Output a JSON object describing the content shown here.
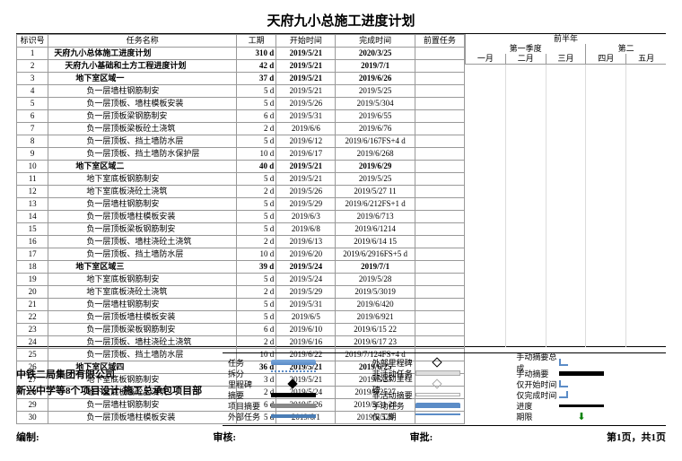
{
  "title": "天府九小总施工进度计划",
  "columns": {
    "id": "标识号",
    "name": "任务名称",
    "duration": "工期",
    "start": "开始时间",
    "end": "完成时间",
    "pred": "前置任务"
  },
  "gantt_header": {
    "half_year": "前半年",
    "q1": "第一季度",
    "q2": "第二",
    "months": [
      "一月",
      "二月",
      "三月",
      "四月",
      "五月"
    ]
  },
  "rows": [
    {
      "id": "1",
      "name": "天府九小总体施工进度计划",
      "dur": "310 d",
      "start": "2019/5/21",
      "end": "2020/3/25",
      "indent": 0,
      "bold": true
    },
    {
      "id": "2",
      "name": "天府九小基础和土方工程进度计划",
      "dur": "42 d",
      "start": "2019/5/21",
      "end": "2019/7/1",
      "indent": 1,
      "bold": true
    },
    {
      "id": "3",
      "name": "地下室区域一",
      "dur": "37 d",
      "start": "2019/5/21",
      "end": "2019/6/26",
      "indent": 2,
      "bold": true
    },
    {
      "id": "4",
      "name": "负一层墙柱钢筋制安",
      "dur": "5 d",
      "start": "2019/5/21",
      "end": "2019/5/25",
      "indent": 3
    },
    {
      "id": "5",
      "name": "负一层顶板、墙柱模板安装",
      "dur": "5 d",
      "start": "2019/5/26",
      "end": "2019/5/304",
      "indent": 3
    },
    {
      "id": "6",
      "name": "负一层顶板梁钢筋制安",
      "dur": "6 d",
      "start": "2019/5/31",
      "end": "2019/6/55",
      "indent": 3
    },
    {
      "id": "7",
      "name": "负一层顶板梁板砼土浇筑",
      "dur": "2 d",
      "start": "2019/6/6",
      "end": "2019/6/76",
      "indent": 3
    },
    {
      "id": "8",
      "name": "负一层顶板、挡土墙防水层",
      "dur": "5 d",
      "start": "2019/6/12",
      "end": "2019/6/167FS+4 d",
      "indent": 3
    },
    {
      "id": "9",
      "name": "负一层顶板、挡土墙防水保护层",
      "dur": "10 d",
      "start": "2019/6/17",
      "end": "2019/6/268",
      "indent": 3
    },
    {
      "id": "10",
      "name": "地下室区域二",
      "dur": "40 d",
      "start": "2019/5/21",
      "end": "2019/6/29",
      "indent": 2,
      "bold": true
    },
    {
      "id": "11",
      "name": "地下室底板钢筋制安",
      "dur": "5 d",
      "start": "2019/5/21",
      "end": "2019/5/25",
      "indent": 3
    },
    {
      "id": "12",
      "name": "地下室底板浇砼土浇筑",
      "dur": "2 d",
      "start": "2019/5/26",
      "end": "2019/5/27 11",
      "indent": 3
    },
    {
      "id": "13",
      "name": "负一层墙柱钢筋制安",
      "dur": "5 d",
      "start": "2019/5/29",
      "end": "2019/6/212FS+1 d",
      "indent": 3
    },
    {
      "id": "14",
      "name": "负一层顶板墙柱模板安装",
      "dur": "5 d",
      "start": "2019/6/3",
      "end": "2019/6/713",
      "indent": 3
    },
    {
      "id": "15",
      "name": "负一层顶板梁板钢筋制安",
      "dur": "5 d",
      "start": "2019/6/8",
      "end": "2019/6/1214",
      "indent": 3
    },
    {
      "id": "16",
      "name": "负一层顶板、墙柱浇砼土浇筑",
      "dur": "2 d",
      "start": "2019/6/13",
      "end": "2019/6/14 15",
      "indent": 3
    },
    {
      "id": "17",
      "name": "负一层顶板、挡土墙防水层",
      "dur": "10 d",
      "start": "2019/6/20",
      "end": "2019/6/2916FS+5 d",
      "indent": 3
    },
    {
      "id": "18",
      "name": "地下室区域三",
      "dur": "39 d",
      "start": "2019/5/24",
      "end": "2019/7/1",
      "indent": 2,
      "bold": true
    },
    {
      "id": "19",
      "name": "地下室底板钢筋制安",
      "dur": "5 d",
      "start": "2019/5/24",
      "end": "2019/5/28",
      "indent": 3
    },
    {
      "id": "20",
      "name": "地下室底板浇砼土浇筑",
      "dur": "2 d",
      "start": "2019/5/29",
      "end": "2019/5/3019",
      "indent": 3
    },
    {
      "id": "21",
      "name": "负一层墙柱钢筋制安",
      "dur": "5 d",
      "start": "2019/5/31",
      "end": "2019/6/420",
      "indent": 3
    },
    {
      "id": "22",
      "name": "负一层顶板墙柱模板安装",
      "dur": "5 d",
      "start": "2019/6/5",
      "end": "2019/6/921",
      "indent": 3
    },
    {
      "id": "23",
      "name": "负一层顶板梁板钢筋制安",
      "dur": "6 d",
      "start": "2019/6/10",
      "end": "2019/6/15 22",
      "indent": 3
    },
    {
      "id": "24",
      "name": "负一层顶板、墙柱浇砼土浇筑",
      "dur": "2 d",
      "start": "2019/6/16",
      "end": "2019/6/17 23",
      "indent": 3
    },
    {
      "id": "25",
      "name": "负一层顶板、挡土墙防水层",
      "dur": "10 d",
      "start": "2019/6/22",
      "end": "2019/7/124FS+4 d",
      "indent": 3
    },
    {
      "id": "26",
      "name": "地下室区域四",
      "dur": "36 d",
      "start": "2019/5/21",
      "end": "2019/6/25",
      "indent": 2,
      "bold": true
    },
    {
      "id": "27",
      "name": "地下室底板钢筋制安",
      "dur": "3 d",
      "start": "2019/5/21",
      "end": "2019/5/23",
      "indent": 3
    },
    {
      "id": "28",
      "name": "地下室底板浇砼土浇筑",
      "dur": "2 d",
      "start": "2019/5/24",
      "end": "2019/5/2527",
      "indent": 3
    },
    {
      "id": "29",
      "name": "负一层墙柱钢筋制安",
      "dur": "6 d",
      "start": "2019/5/26",
      "end": "2019/5/31 28",
      "indent": 3
    },
    {
      "id": "30",
      "name": "负一层顶板墙柱模板安装",
      "dur": "5 d",
      "start": "2019/6/1",
      "end": "2019/6/529",
      "indent": 3
    }
  ],
  "company": {
    "line1": "中铁二局集团有限公司",
    "line2": "新兴中学等8个项目设计-施工总承包项目部"
  },
  "legend": {
    "c1": [
      [
        "任务",
        "sw-task"
      ],
      [
        "拆分",
        "sw-split"
      ],
      [
        "里程碑",
        "sw-ms"
      ],
      [
        "摘要",
        "sw-summary"
      ],
      [
        "项目摘要",
        "sw-proj"
      ],
      [
        "外部任务",
        "sw-ext"
      ]
    ],
    "c2": [
      [
        "外部里程碑",
        "sw-extms"
      ],
      [
        "非活动任务",
        "sw-inactive"
      ],
      [
        "非活动里程碑",
        "sw-inactive-ms"
      ],
      [
        "非活动摘要",
        "sw-inactive-sum"
      ],
      [
        "手动任务",
        "sw-manual"
      ],
      [
        "仅工期",
        "sw-dur"
      ]
    ],
    "c3": [
      [
        "手动摘要总成",
        "sw-bracket"
      ],
      [
        "手动摘要",
        "sw-summary"
      ],
      [
        "仅开始时间",
        "sw-bracket"
      ],
      [
        "仅完成时间",
        "sw-bracketr"
      ],
      [
        "进度",
        "sw-prog"
      ],
      [
        "期限",
        "sw-deadline"
      ]
    ]
  },
  "bottom": {
    "compile": "编制:",
    "check": "审核:",
    "approve": "审批:",
    "page": "第1页，共1页"
  }
}
